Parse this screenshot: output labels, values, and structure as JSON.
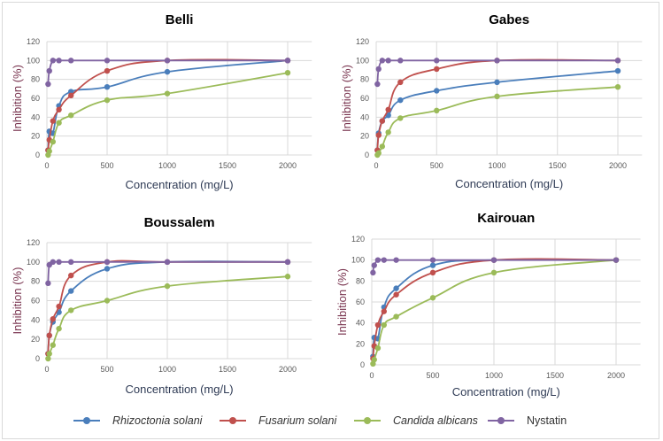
{
  "chart_data": [
    {
      "type": "line",
      "title": "Belli",
      "xlabel": "Concentration (mg/L)",
      "ylabel": "Inhibition (%)",
      "xlim": [
        0,
        2200
      ],
      "ylim": [
        0,
        120
      ],
      "xticks": [
        0,
        500,
        1000,
        1500,
        2000
      ],
      "yticks": [
        0,
        20,
        40,
        60,
        80,
        100,
        120
      ],
      "grid": true,
      "x": [
        10,
        20,
        50,
        100,
        200,
        500,
        1000,
        2000
      ],
      "series": [
        {
          "name": "Rhizoctonia solani",
          "values": [
            5,
            25,
            23,
            52,
            67,
            72,
            88,
            100
          ]
        },
        {
          "name": "Fusarium solani",
          "values": [
            5,
            16,
            36,
            48,
            63,
            89,
            100,
            100
          ]
        },
        {
          "name": "Candida albicans",
          "values": [
            0,
            4,
            14,
            34,
            42,
            58,
            65,
            87
          ]
        },
        {
          "name": "Nystatin",
          "values": [
            75,
            89,
            100,
            100,
            100,
            100,
            100,
            100
          ]
        }
      ]
    },
    {
      "type": "line",
      "title": "Gabes",
      "xlabel": "Concentration (mg/L)",
      "ylabel": "Inhibition (%)",
      "xlim": [
        0,
        2200
      ],
      "ylim": [
        0,
        120
      ],
      "xticks": [
        0,
        500,
        1000,
        1500,
        2000
      ],
      "yticks": [
        0,
        20,
        40,
        60,
        80,
        100,
        120
      ],
      "grid": true,
      "x": [
        10,
        20,
        50,
        100,
        200,
        500,
        1000,
        2000
      ],
      "series": [
        {
          "name": "Rhizoctonia solani",
          "values": [
            5,
            23,
            36,
            42,
            58,
            68,
            77,
            89
          ]
        },
        {
          "name": "Fusarium solani",
          "values": [
            5,
            21,
            36,
            48,
            77,
            91,
            100,
            100
          ]
        },
        {
          "name": "Candida albicans",
          "values": [
            0,
            2,
            9,
            24,
            39,
            47,
            62,
            72
          ]
        },
        {
          "name": "Nystatin",
          "values": [
            75,
            91,
            100,
            100,
            100,
            100,
            100,
            100
          ]
        }
      ]
    },
    {
      "type": "line",
      "title": "Boussalem",
      "xlabel": "Concentration (mg/L)",
      "ylabel": "Inhibition (%)",
      "xlim": [
        0,
        2200
      ],
      "ylim": [
        0,
        120
      ],
      "xticks": [
        0,
        500,
        1000,
        1500,
        2000
      ],
      "yticks": [
        0,
        20,
        40,
        60,
        80,
        100,
        120
      ],
      "grid": true,
      "x": [
        10,
        20,
        50,
        100,
        200,
        500,
        1000,
        2000
      ],
      "series": [
        {
          "name": "Rhizoctonia solani",
          "values": [
            5,
            24,
            38,
            48,
            70,
            93,
            100,
            100
          ]
        },
        {
          "name": "Fusarium solani",
          "values": [
            5,
            24,
            41,
            54,
            86,
            100,
            100,
            100
          ]
        },
        {
          "name": "Candida albicans",
          "values": [
            0,
            5,
            14,
            31,
            50,
            60,
            75,
            85
          ]
        },
        {
          "name": "Nystatin",
          "values": [
            78,
            97,
            100,
            100,
            100,
            100,
            100,
            100
          ]
        }
      ]
    },
    {
      "type": "line",
      "title": "Kairouan",
      "xlabel": "Concentration (mg/L)",
      "ylabel": "Inhibition (%)",
      "xlim": [
        0,
        2200
      ],
      "ylim": [
        0,
        120
      ],
      "xticks": [
        0,
        500,
        1000,
        1500,
        2000
      ],
      "yticks": [
        0,
        20,
        40,
        60,
        80,
        100,
        120
      ],
      "grid": true,
      "x": [
        10,
        20,
        50,
        100,
        200,
        500,
        1000,
        2000
      ],
      "series": [
        {
          "name": "Rhizoctonia solani",
          "values": [
            8,
            26,
            25,
            55,
            73,
            95,
            100,
            100
          ]
        },
        {
          "name": "Fusarium solani",
          "values": [
            6,
            18,
            38,
            51,
            67,
            88,
            100,
            100
          ]
        },
        {
          "name": "Candida albicans",
          "values": [
            1,
            5,
            16,
            38,
            46,
            64,
            88,
            100
          ]
        },
        {
          "name": "Nystatin",
          "values": [
            88,
            95,
            100,
            100,
            100,
            100,
            100,
            100
          ]
        }
      ]
    }
  ],
  "legend": {
    "placement": "bottom",
    "items": [
      {
        "name": "Rhizoctonia solani",
        "color": "#4a7ebb",
        "italic": true
      },
      {
        "name": "Fusarium solani",
        "color": "#c0504d",
        "italic": true
      },
      {
        "name": "Candida albicans",
        "color": "#9bbb59",
        "italic": true
      },
      {
        "name": "Nystatin",
        "color": "#8064a2",
        "italic": false
      }
    ]
  }
}
